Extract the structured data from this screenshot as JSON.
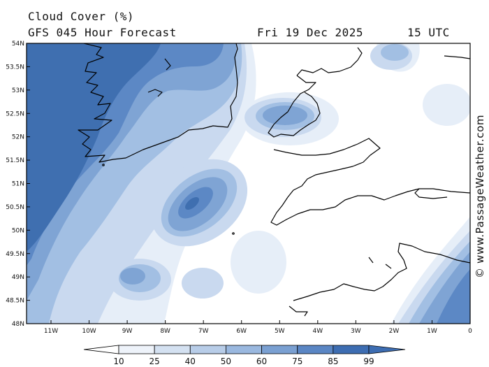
{
  "header": {
    "title": "Cloud Cover (%)",
    "model": "GFS 045 Hour Forecast",
    "date": "Fri 19 Dec 2025",
    "time": "15 UTC"
  },
  "watermark": "© www.PassageWeather.com",
  "axes": {
    "lat_labels": [
      "54N",
      "53.5N",
      "53N",
      "52.5N",
      "52N",
      "51.5N",
      "51N",
      "50.5N",
      "50N",
      "49.5N",
      "49N",
      "48.5N",
      "48N"
    ],
    "lon_labels": [
      "11W",
      "10W",
      "9W",
      "8W",
      "7W",
      "6W",
      "5W",
      "4W",
      "3W",
      "2W",
      "1W",
      "0"
    ]
  },
  "colorbar": {
    "labels": [
      "10",
      "25",
      "40",
      "50",
      "60",
      "75",
      "85",
      "99"
    ],
    "colors": [
      "#ffffff",
      "#eef3fa",
      "#d4e1f1",
      "#b8cde8",
      "#9ab8df",
      "#7aa0d2",
      "#5a86c4",
      "#3d6db2",
      "#355f98"
    ]
  },
  "palette": {
    "coast": "#000000",
    "frame": "#000000"
  }
}
